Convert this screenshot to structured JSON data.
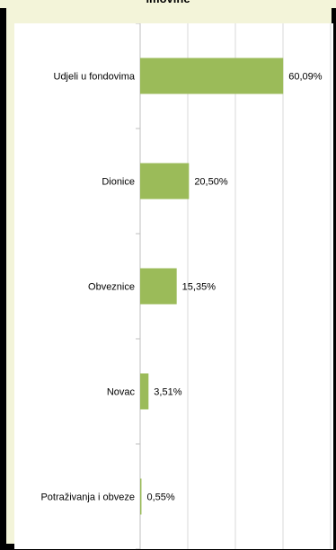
{
  "chart_data": {
    "type": "bar",
    "orientation": "horizontal",
    "title": "imovine",
    "categories": [
      "Udjeli u fondovima",
      "Dionice",
      "Obveznice",
      "Novac",
      "Potraživanja i obveze"
    ],
    "values": [
      60.09,
      20.5,
      15.35,
      3.51,
      0.55
    ],
    "data_labels": [
      "60,09%",
      "20,50%",
      "15,35%",
      "3,51%",
      "0,55%"
    ],
    "xlim": [
      0,
      80
    ],
    "x_gridlines": [
      0,
      20,
      40,
      60,
      80
    ],
    "grid": true,
    "bar_color": "#9bbb59",
    "gridline_color": "#d9d9d9"
  }
}
